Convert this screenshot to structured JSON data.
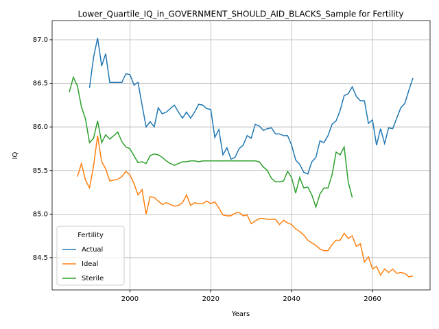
{
  "chart_data": {
    "type": "line",
    "title": "Lower_Quartile_IQ_in_GOVERNMENT_SHOULD_AID_BLACKS_Sample for Fertility",
    "xlabel": "Years",
    "ylabel": "IQ",
    "x": [
      1985,
      1986,
      1987,
      1988,
      1989,
      1990,
      1991,
      1992,
      1993,
      1994,
      1995,
      1996,
      1997,
      1998,
      1999,
      2000,
      2001,
      2002,
      2003,
      2004,
      2005,
      2006,
      2007,
      2008,
      2009,
      2010,
      2011,
      2012,
      2013,
      2014,
      2015,
      2016,
      2017,
      2018,
      2019,
      2020,
      2021,
      2022,
      2023,
      2024,
      2025,
      2026,
      2027,
      2028,
      2029,
      2030,
      2031,
      2032,
      2033,
      2034,
      2035,
      2036,
      2037,
      2038,
      2039,
      2040,
      2041,
      2042,
      2043,
      2044,
      2045,
      2046,
      2047,
      2048,
      2049,
      2050,
      2051,
      2052,
      2053,
      2054,
      2055,
      2056,
      2057,
      2058,
      2059,
      2060,
      2061,
      2062,
      2063,
      2064,
      2065,
      2066,
      2067,
      2068,
      2069,
      2070
    ],
    "series": [
      {
        "name": "Actual",
        "color": "#1f77b4",
        "values": [
          null,
          null,
          null,
          null,
          null,
          86.45,
          86.8,
          87.02,
          86.7,
          86.84,
          86.51,
          86.51,
          86.51,
          86.51,
          86.61,
          86.6,
          86.48,
          86.51,
          86.25,
          86.0,
          86.06,
          86.0,
          86.22,
          86.15,
          86.17,
          86.21,
          86.25,
          86.17,
          86.1,
          86.17,
          86.1,
          86.17,
          86.26,
          86.25,
          86.21,
          86.2,
          85.88,
          85.97,
          85.68,
          85.76,
          85.63,
          85.65,
          85.75,
          85.79,
          85.9,
          85.87,
          86.03,
          86.01,
          85.96,
          85.98,
          85.99,
          85.92,
          85.92,
          85.9,
          85.9,
          85.79,
          85.62,
          85.57,
          85.48,
          85.46,
          85.6,
          85.65,
          85.84,
          85.82,
          85.9,
          86.03,
          86.07,
          86.19,
          86.36,
          86.38,
          86.46,
          86.35,
          86.3,
          86.3,
          86.04,
          86.08,
          85.79,
          85.98,
          85.81,
          85.99,
          85.98,
          86.1,
          86.22,
          86.27,
          86.42,
          86.56
        ]
      },
      {
        "name": "Ideal",
        "color": "#ff7f0e",
        "values": [
          null,
          null,
          85.43,
          85.58,
          85.39,
          85.3,
          85.55,
          85.9,
          85.6,
          85.52,
          85.38,
          85.39,
          85.4,
          85.43,
          85.49,
          85.45,
          85.35,
          85.22,
          85.28,
          85.0,
          85.2,
          85.19,
          85.15,
          85.11,
          85.13,
          85.11,
          85.09,
          85.1,
          85.13,
          85.22,
          85.1,
          85.13,
          85.12,
          85.12,
          85.15,
          85.12,
          85.14,
          85.07,
          84.99,
          84.98,
          84.98,
          85.01,
          85.02,
          84.98,
          84.99,
          84.89,
          84.92,
          84.95,
          84.95,
          84.94,
          84.94,
          84.94,
          84.88,
          84.93,
          84.9,
          84.88,
          84.83,
          84.8,
          84.76,
          84.7,
          84.67,
          84.64,
          84.6,
          84.58,
          84.58,
          84.65,
          84.7,
          84.7,
          84.78,
          84.72,
          84.75,
          84.63,
          84.66,
          84.45,
          84.51,
          84.37,
          84.4,
          84.3,
          84.37,
          84.33,
          84.37,
          84.32,
          84.33,
          84.32,
          84.28,
          84.29
        ]
      },
      {
        "name": "Sterile",
        "color": "#2ca02c",
        "values": [
          86.4,
          86.57,
          86.47,
          86.23,
          86.09,
          85.82,
          85.87,
          86.07,
          85.82,
          85.91,
          85.86,
          85.9,
          85.94,
          85.83,
          85.77,
          85.75,
          85.67,
          85.59,
          85.6,
          85.58,
          85.67,
          85.69,
          85.68,
          85.65,
          85.61,
          85.58,
          85.56,
          85.58,
          85.6,
          85.6,
          85.61,
          85.61,
          85.6,
          85.61,
          85.61,
          85.61,
          85.61,
          85.61,
          85.61,
          85.61,
          85.61,
          85.61,
          85.61,
          85.61,
          85.61,
          85.61,
          85.61,
          85.6,
          85.54,
          85.5,
          85.41,
          85.37,
          85.37,
          85.38,
          85.49,
          85.42,
          85.24,
          85.42,
          85.3,
          85.31,
          85.22,
          85.08,
          85.23,
          85.3,
          85.3,
          85.45,
          85.71,
          85.68,
          85.77,
          85.37,
          85.19,
          null,
          null,
          null,
          null,
          null,
          null,
          null,
          null,
          null,
          null,
          null,
          null,
          null,
          null,
          null
        ]
      }
    ],
    "xlim": [
      1980.75,
      2074.25
    ],
    "xticks": [
      2000,
      2020,
      2040,
      2060
    ],
    "ylim": [
      84.13,
      87.22
    ],
    "yticks": [
      {
        "value": 84.5,
        "label": "84.5"
      },
      {
        "value": 85,
        "label": "85.0"
      },
      85.5,
      {
        "value": 86,
        "label": "86.0"
      },
      86.5,
      {
        "value": 87,
        "label": "87.0"
      }
    ],
    "grid": true,
    "legend_title": "Fertility",
    "legend_loc": "lower left"
  }
}
